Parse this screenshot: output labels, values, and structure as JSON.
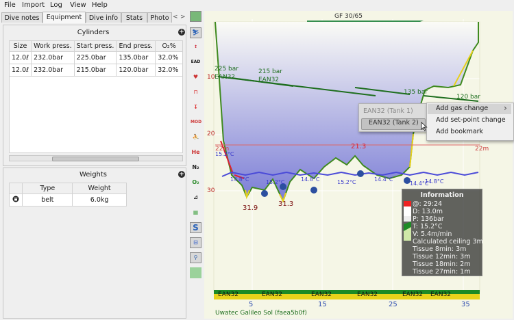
{
  "menu": [
    "File",
    "Import",
    "Log",
    "View",
    "Help"
  ],
  "tabs": [
    "Dive notes",
    "Equipment",
    "Dive info",
    "Stats",
    "Photo"
  ],
  "active_tab": "Equipment",
  "cylinders": {
    "title": "Cylinders",
    "columns": [
      "Size",
      "Work press.",
      "Start press.",
      "End press.",
      "O₂%"
    ],
    "rows": [
      [
        "12.0ℓ",
        "232.0bar",
        "225.0bar",
        "135.0bar",
        "32.0%"
      ],
      [
        "12.0ℓ",
        "232.0bar",
        "215.0bar",
        "120.0bar",
        "32.0%"
      ]
    ]
  },
  "weights": {
    "title": "Weights",
    "columns": [
      "Type",
      "Weight"
    ],
    "rows": [
      [
        "belt",
        "6.0kg"
      ]
    ]
  },
  "toolbar_icons": [
    "profile-icon",
    "calc-icon",
    "ead-icon",
    "heart-icon",
    "ceiling-icon",
    "mod-icon",
    "diver-icon",
    "he-icon",
    "n2-icon",
    "o2-icon",
    "pressure-icon",
    "tissue-icon",
    "s-icon",
    "tank-icon",
    "person-icon",
    "heatmap-icon"
  ],
  "profile": {
    "gf_label": "GF 30/65",
    "depth_ticks": [
      "10",
      "20",
      "30"
    ],
    "time_ticks": [
      "5",
      "15",
      "25",
      "35"
    ],
    "ceiling_label": "22m",
    "ceiling_label_left": "22m",
    "pressure_labels": [
      "225 bar",
      "215 bar",
      "135 bar",
      "120 bar"
    ],
    "gas_labels_top": [
      "EAN32",
      "EAN32"
    ],
    "temperature_labels": [
      "15.2°C",
      "14.8°C",
      "15.2°C",
      "14.8°C",
      "15.2°C",
      "14.4°C",
      "14.4°C",
      "14.8°C"
    ],
    "depth_markers": [
      "31.9",
      "31.3",
      "21.3"
    ],
    "gas_bar_labels": [
      "EAN32",
      "EAN32",
      "EAN32",
      "EAN32",
      "EAN32",
      "EAN32"
    ],
    "computer": "Uwatec Galileo Sol (faea5b0f)"
  },
  "context_menu": {
    "submenu_items": [
      "EAN32 (Tank 1)",
      "EAN32 (Tank 2)"
    ],
    "items": [
      "Add gas change",
      "Add set-point change",
      "Add bookmark"
    ],
    "arrow": "›"
  },
  "info": {
    "title": "Information",
    "lines": [
      "@: 29:24",
      "D: 13.0m",
      "P: 136bar",
      "T: 15.2°C",
      "V: 5.4m/min",
      "Calculated ceiling 3m",
      "Tissue 8min: 3m",
      "Tissue 12min: 3m",
      "Tissue 18min: 2m",
      "Tissue 27min: 1m"
    ]
  }
}
